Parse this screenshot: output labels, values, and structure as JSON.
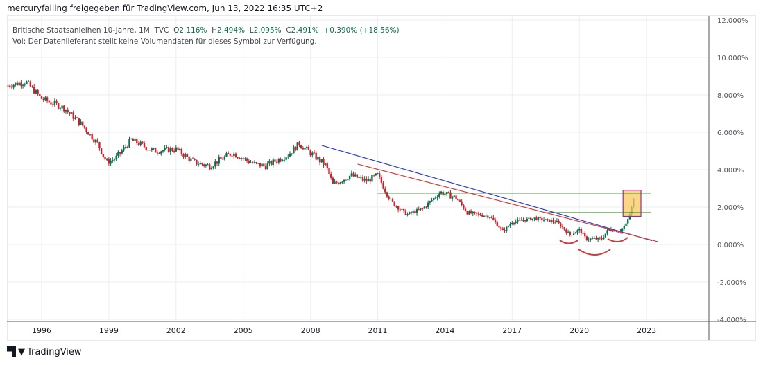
{
  "header": {
    "title": "mercuryfalling freigegeben für TradingView.com, Jun 13, 2022 16:35 UTC+2"
  },
  "legend": {
    "symbol": "Britische Staatsanleihen 10-Jahre, 1M, TVC",
    "o_label": "O",
    "o": "2.116%",
    "h_label": "H",
    "h": "2.494%",
    "l_label": "L",
    "l": "2.095%",
    "c_label": "C",
    "c": "2.491%",
    "change": "+0.390% (+18.56%)",
    "vol": "Vol: Der Datenlieferant stellt keine Volumendaten für dieses Symbol zur Verfügung."
  },
  "footer": {
    "brand": "TradingView",
    "logo": "TV"
  },
  "colors": {
    "up": "#0b6e4f",
    "down": "#c8232c",
    "grid": "#eceef2",
    "blue_line": "#2c3fc7",
    "red_line": "#d33b3b",
    "green_line": "#2e6b1f",
    "box_fill": "#f9c85e",
    "box_border": "#9c27b0"
  },
  "chart_data": {
    "type": "candlestick",
    "title": "Britische Staatsanleihen 10-Jahre, 1M, TVC",
    "ylim": [
      -4,
      12
    ],
    "xlim": [
      1994.45,
      2026.0
    ],
    "y_ticks": [
      "12.000%",
      "10.000%",
      "8.000%",
      "6.000%",
      "4.000%",
      "2.000%",
      "0.000%",
      "-2.000%",
      "-4.000%"
    ],
    "y_tick_values": [
      12,
      10,
      8,
      6,
      4,
      2,
      0,
      -2,
      -4
    ],
    "x_ticks": [
      "1996",
      "1999",
      "2002",
      "2005",
      "2008",
      "2011",
      "2014",
      "2017",
      "2020",
      "2023"
    ],
    "x_tick_values": [
      1996,
      1999,
      2002,
      2005,
      2008,
      2011,
      2014,
      2017,
      2020,
      2023
    ],
    "approx_close_path": [
      [
        1994.5,
        8.5
      ],
      [
        1995.3,
        8.7
      ],
      [
        1996.0,
        7.8
      ],
      [
        1997.0,
        7.3
      ],
      [
        1997.8,
        6.4
      ],
      [
        1998.5,
        5.4
      ],
      [
        1998.9,
        4.4
      ],
      [
        1999.3,
        4.6
      ],
      [
        2000.0,
        5.6
      ],
      [
        2001.0,
        5.0
      ],
      [
        2002.0,
        5.1
      ],
      [
        2002.8,
        4.4
      ],
      [
        2003.5,
        4.2
      ],
      [
        2004.5,
        4.9
      ],
      [
        2005.5,
        4.3
      ],
      [
        2006.0,
        4.2
      ],
      [
        2007.0,
        4.8
      ],
      [
        2007.5,
        5.4
      ],
      [
        2008.3,
        4.6
      ],
      [
        2008.7,
        4.2
      ],
      [
        2009.0,
        3.2
      ],
      [
        2009.8,
        3.7
      ],
      [
        2010.5,
        3.4
      ],
      [
        2011.0,
        3.7
      ],
      [
        2011.6,
        2.3
      ],
      [
        2012.3,
        1.6
      ],
      [
        2013.0,
        1.9
      ],
      [
        2013.8,
        2.8
      ],
      [
        2014.5,
        2.5
      ],
      [
        2015.0,
        1.7
      ],
      [
        2016.0,
        1.5
      ],
      [
        2016.6,
        0.7
      ],
      [
        2017.0,
        1.2
      ],
      [
        2018.0,
        1.4
      ],
      [
        2019.0,
        1.2
      ],
      [
        2019.6,
        0.5
      ],
      [
        2020.0,
        0.8
      ],
      [
        2020.3,
        0.3
      ],
      [
        2021.0,
        0.3
      ],
      [
        2021.3,
        0.8
      ],
      [
        2021.8,
        0.7
      ],
      [
        2022.1,
        1.1
      ],
      [
        2022.3,
        1.8
      ],
      [
        2022.45,
        2.49
      ]
    ],
    "drawings": {
      "trend_blue": [
        [
          2008.5,
          5.3
        ],
        [
          2023.25,
          0.2
        ]
      ],
      "trend_red": [
        [
          2010.1,
          4.3
        ],
        [
          2023.5,
          0.15
        ]
      ],
      "hline_upper": {
        "value": 2.75,
        "from": 2011.0,
        "to": 2023.2
      },
      "hline_lower": {
        "value": 1.7,
        "from": 2018.4,
        "to": 2023.2
      },
      "highlight_box": {
        "from": 2021.95,
        "to": 2022.75,
        "top": 2.9,
        "bottom": 1.5
      }
    }
  }
}
